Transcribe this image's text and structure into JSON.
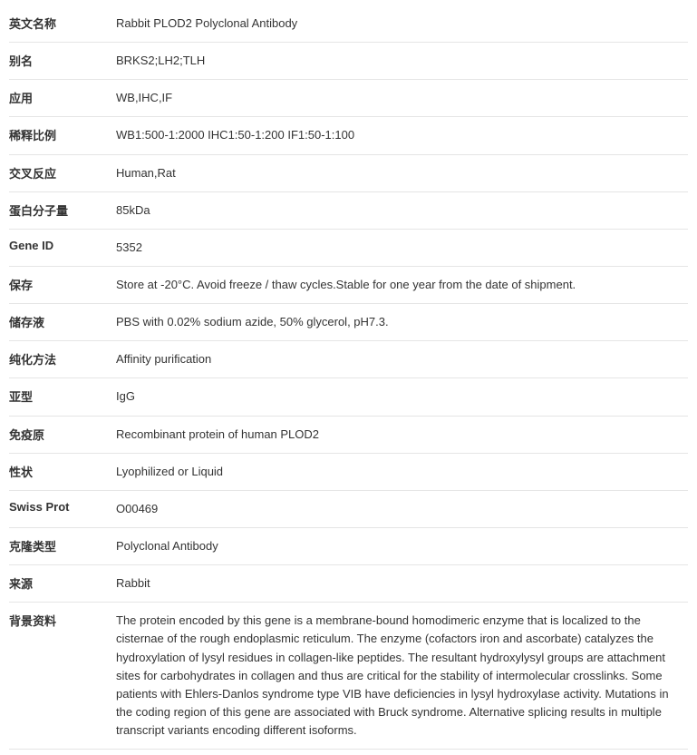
{
  "rows": [
    {
      "label": "英文名称",
      "value": "Rabbit PLOD2 Polyclonal Antibody"
    },
    {
      "label": "别名",
      "value": "BRKS2;LH2;TLH"
    },
    {
      "label": "应用",
      "value": "WB,IHC,IF"
    },
    {
      "label": "稀释比例",
      "value": "WB1:500-1:2000 IHC1:50-1:200 IF1:50-1:100"
    },
    {
      "label": "交叉反应",
      "value": "Human,Rat"
    },
    {
      "label": "蛋白分子量",
      "value": "85kDa"
    },
    {
      "label": "Gene ID",
      "value": "5352"
    },
    {
      "label": "保存",
      "value": "Store at -20°C. Avoid freeze / thaw cycles.Stable for one year from the date of shipment."
    },
    {
      "label": "储存液",
      "value": "PBS with 0.02% sodium azide, 50% glycerol, pH7.3."
    },
    {
      "label": "纯化方法",
      "value": "Affinity purification"
    },
    {
      "label": "亚型",
      "value": "IgG"
    },
    {
      "label": "免疫原",
      "value": "Recombinant protein of human PLOD2"
    },
    {
      "label": "性状",
      "value": "Lyophilized or Liquid"
    },
    {
      "label": "Swiss Prot",
      "value": "O00469"
    },
    {
      "label": "克隆类型",
      "value": "Polyclonal Antibody"
    },
    {
      "label": "来源",
      "value": "Rabbit"
    },
    {
      "label": "背景资料",
      "value": "The protein encoded by this gene is a membrane-bound homodimeric enzyme that is localized to the cisternae of the rough endoplasmic reticulum. The enzyme (cofactors iron and ascorbate) catalyzes the hydroxylation of lysyl residues in collagen-like peptides. The resultant hydroxylysyl groups are attachment sites for carbohydrates in collagen and thus are critical for the stability of intermolecular crosslinks. Some patients with Ehlers-Danlos syndrome type VIB have deficiencies in lysyl hydroxylase activity. Mutations in the coding region of this gene are associated with Bruck syndrome. Alternative splicing results in multiple transcript variants encoding different isoforms."
    }
  ]
}
